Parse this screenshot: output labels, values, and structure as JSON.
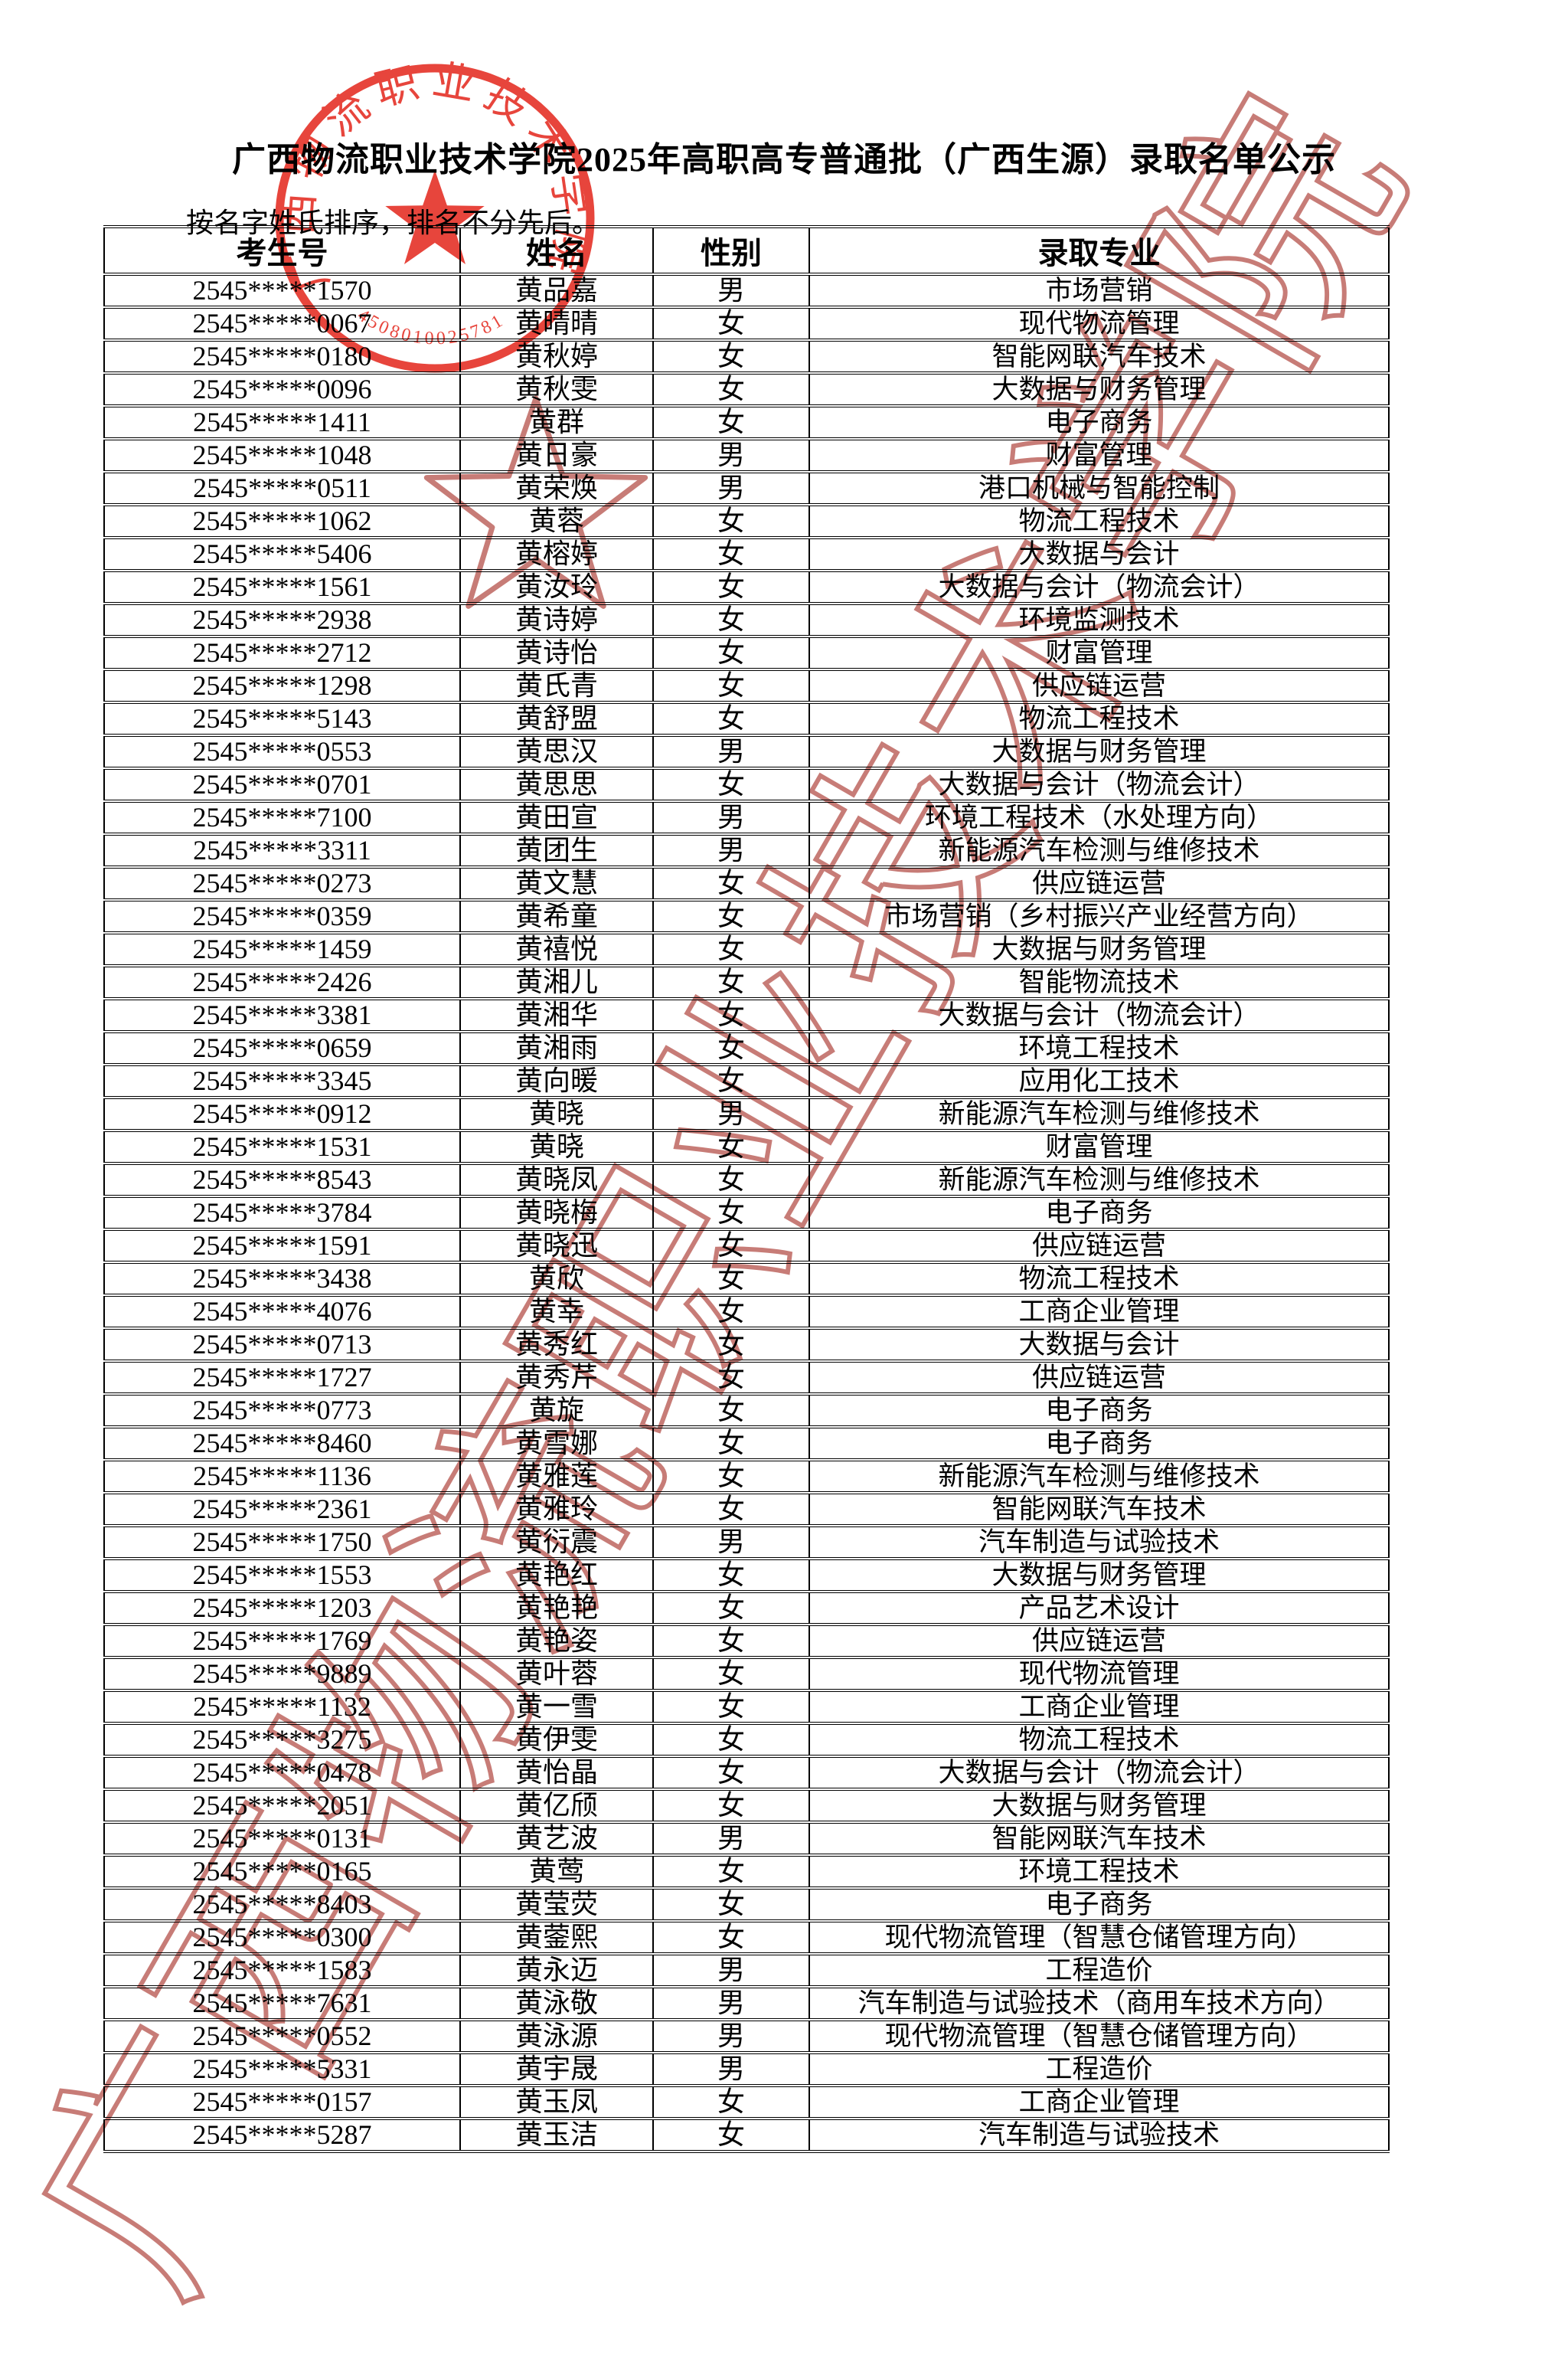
{
  "page": {
    "title": "广西物流职业技术学院2025年高职高专普通批（广西生源）录取名单公示",
    "note": "按名字姓氏排序，排名不分先后。"
  },
  "stamp": {
    "arc_text": "广西物流职业技术学院",
    "serial": "4508010025781",
    "color": "#e5352b"
  },
  "watermark": {
    "text": "广西物流职业技术学院",
    "color": "#b24a42"
  },
  "table": {
    "columns": [
      "考生号",
      "姓名",
      "性别",
      "录取专业"
    ],
    "rows": [
      [
        "2545*****1570",
        "黄品嘉",
        "男",
        "市场营销"
      ],
      [
        "2545*****0067",
        "黄晴晴",
        "女",
        "现代物流管理"
      ],
      [
        "2545*****0180",
        "黄秋婷",
        "女",
        "智能网联汽车技术"
      ],
      [
        "2545*****0096",
        "黄秋雯",
        "女",
        "大数据与财务管理"
      ],
      [
        "2545*****1411",
        "黄群",
        "女",
        "电子商务"
      ],
      [
        "2545*****1048",
        "黄日豪",
        "男",
        "财富管理"
      ],
      [
        "2545*****0511",
        "黄荣焕",
        "男",
        "港口机械与智能控制"
      ],
      [
        "2545*****1062",
        "黄蓉",
        "女",
        "物流工程技术"
      ],
      [
        "2545*****5406",
        "黄榕婷",
        "女",
        "大数据与会计"
      ],
      [
        "2545*****1561",
        "黄汝玲",
        "女",
        "大数据与会计（物流会计）"
      ],
      [
        "2545*****2938",
        "黄诗婷",
        "女",
        "环境监测技术"
      ],
      [
        "2545*****2712",
        "黄诗怡",
        "女",
        "财富管理"
      ],
      [
        "2545*****1298",
        "黄氏青",
        "女",
        "供应链运营"
      ],
      [
        "2545*****5143",
        "黄舒盟",
        "女",
        "物流工程技术"
      ],
      [
        "2545*****0553",
        "黄思汉",
        "男",
        "大数据与财务管理"
      ],
      [
        "2545*****0701",
        "黄思思",
        "女",
        "大数据与会计（物流会计）"
      ],
      [
        "2545*****7100",
        "黄田宣",
        "男",
        "环境工程技术（水处理方向）"
      ],
      [
        "2545*****3311",
        "黄团生",
        "男",
        "新能源汽车检测与维修技术"
      ],
      [
        "2545*****0273",
        "黄文慧",
        "女",
        "供应链运营"
      ],
      [
        "2545*****0359",
        "黄希童",
        "女",
        "市场营销（乡村振兴产业经营方向）"
      ],
      [
        "2545*****1459",
        "黄禧悦",
        "女",
        "大数据与财务管理"
      ],
      [
        "2545*****2426",
        "黄湘儿",
        "女",
        "智能物流技术"
      ],
      [
        "2545*****3381",
        "黄湘华",
        "女",
        "大数据与会计（物流会计）"
      ],
      [
        "2545*****0659",
        "黄湘雨",
        "女",
        "环境工程技术"
      ],
      [
        "2545*****3345",
        "黄向暖",
        "女",
        "应用化工技术"
      ],
      [
        "2545*****0912",
        "黄晓",
        "男",
        "新能源汽车检测与维修技术"
      ],
      [
        "2545*****1531",
        "黄晓",
        "女",
        "财富管理"
      ],
      [
        "2545*****8543",
        "黄晓凤",
        "女",
        "新能源汽车检测与维修技术"
      ],
      [
        "2545*****3784",
        "黄晓梅",
        "女",
        "电子商务"
      ],
      [
        "2545*****1591",
        "黄晓迅",
        "女",
        "供应链运营"
      ],
      [
        "2545*****3438",
        "黄欣",
        "女",
        "物流工程技术"
      ],
      [
        "2545*****4076",
        "黄幸",
        "女",
        "工商企业管理"
      ],
      [
        "2545*****0713",
        "黄秀红",
        "女",
        "大数据与会计"
      ],
      [
        "2545*****1727",
        "黄秀芹",
        "女",
        "供应链运营"
      ],
      [
        "2545*****0773",
        "黄旋",
        "女",
        "电子商务"
      ],
      [
        "2545*****8460",
        "黄雪娜",
        "女",
        "电子商务"
      ],
      [
        "2545*****1136",
        "黄雅莲",
        "女",
        "新能源汽车检测与维修技术"
      ],
      [
        "2545*****2361",
        "黄雅玲",
        "女",
        "智能网联汽车技术"
      ],
      [
        "2545*****1750",
        "黄衍震",
        "男",
        "汽车制造与试验技术"
      ],
      [
        "2545*****1553",
        "黄艳红",
        "女",
        "大数据与财务管理"
      ],
      [
        "2545*****1203",
        "黄艳艳",
        "女",
        "产品艺术设计"
      ],
      [
        "2545*****1769",
        "黄艳姿",
        "女",
        "供应链运营"
      ],
      [
        "2545*****9889",
        "黄叶蓉",
        "女",
        "现代物流管理"
      ],
      [
        "2545*****1132",
        "黄一雪",
        "女",
        "工商企业管理"
      ],
      [
        "2545*****3275",
        "黄伊雯",
        "女",
        "物流工程技术"
      ],
      [
        "2545*****0478",
        "黄怡晶",
        "女",
        "大数据与会计（物流会计）"
      ],
      [
        "2545*****2051",
        "黄亿颀",
        "女",
        "大数据与财务管理"
      ],
      [
        "2545*****0131",
        "黄艺波",
        "男",
        "智能网联汽车技术"
      ],
      [
        "2545*****0165",
        "黄莺",
        "女",
        "环境工程技术"
      ],
      [
        "2545*****8403",
        "黄莹荧",
        "女",
        "电子商务"
      ],
      [
        "2545*****0300",
        "黄蓥熙",
        "女",
        "现代物流管理（智慧仓储管理方向）"
      ],
      [
        "2545*****1583",
        "黄永迈",
        "男",
        "工程造价"
      ],
      [
        "2545*****7631",
        "黄泳敬",
        "男",
        "汽车制造与试验技术（商用车技术方向）"
      ],
      [
        "2545*****0552",
        "黄泳源",
        "男",
        "现代物流管理（智慧仓储管理方向）"
      ],
      [
        "2545*****5331",
        "黄宇晟",
        "男",
        "工程造价"
      ],
      [
        "2545*****0157",
        "黄玉凤",
        "女",
        "工商企业管理"
      ],
      [
        "2545*****5287",
        "黄玉洁",
        "女",
        "汽车制造与试验技术"
      ]
    ]
  }
}
